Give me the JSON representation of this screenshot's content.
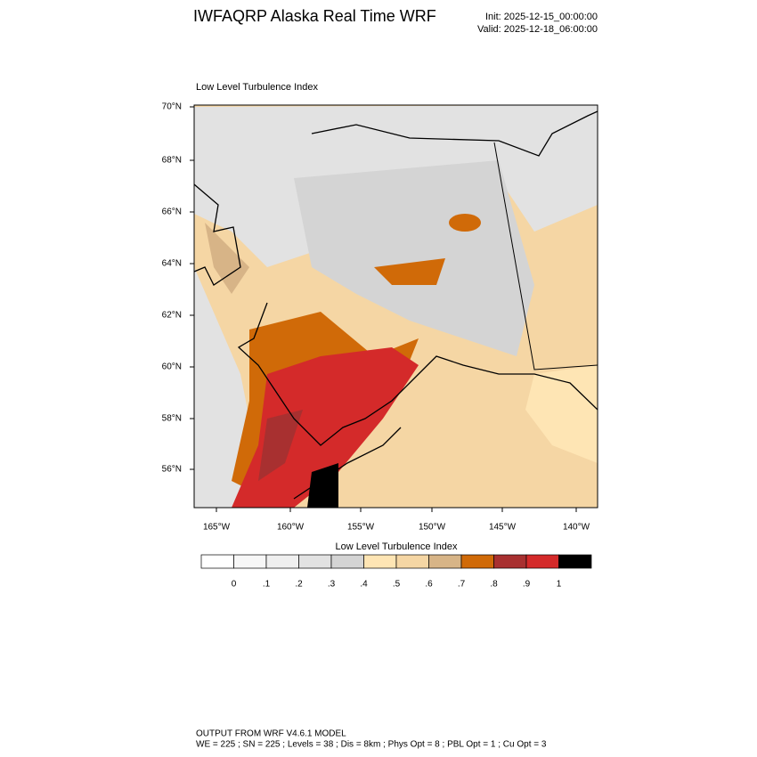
{
  "header": {
    "title": "IWFAQRP Alaska Real Time WRF",
    "init": "Init: 2025-12-15_00:00:00",
    "valid": "Valid: 2025-12-18_06:00:00"
  },
  "map": {
    "title": "Low Level Turbulence Index",
    "lat_labels": [
      "70°N",
      "68°N",
      "66°N",
      "64°N",
      "62°N",
      "60°N",
      "58°N",
      "56°N"
    ],
    "lon_labels": [
      "165°W",
      "160°W",
      "155°W",
      "150°W",
      "145°W",
      "140°W"
    ]
  },
  "colorbar": {
    "title": "Low Level Turbulence Index",
    "colors": [
      "#ffffff",
      "#f7f7f7",
      "#efefef",
      "#e2e2e2",
      "#d4d4d4",
      "#fee5b4",
      "#f5d6a4",
      "#d7b487",
      "#d06a08",
      "#a83030",
      "#d42a2a",
      "#000000"
    ],
    "labels": [
      "0",
      ".1",
      ".2",
      ".3",
      ".4",
      ".5",
      ".6",
      ".7",
      ".8",
      ".9",
      "1"
    ]
  },
  "footer": {
    "line1": "OUTPUT FROM WRF V4.6.1 MODEL",
    "line2": "WE = 225 ; SN = 225 ; Levels = 38 ; Dis = 8km ; Phys Opt = 8 ; PBL Opt = 1 ; Cu Opt = 3"
  }
}
